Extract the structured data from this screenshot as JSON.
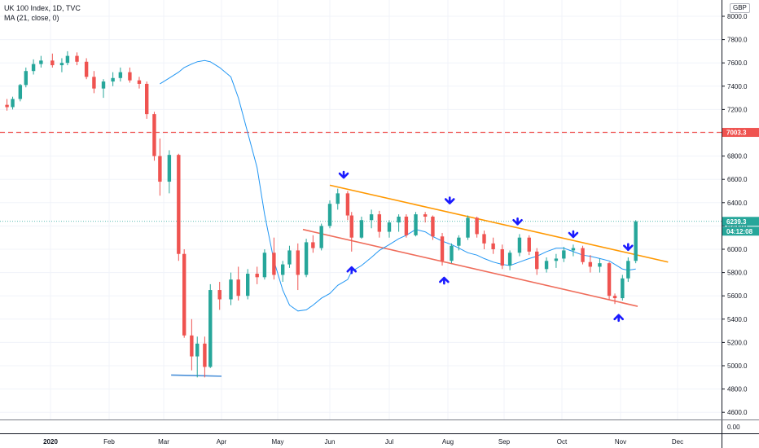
{
  "legend": {
    "symbol_line": "UK 100 Index, 1D, TVC",
    "indicator_line": "MA (21, close, 0)"
  },
  "currency": "GBP",
  "chart_data": {
    "type": "candlestick",
    "y_ticks": [
      "8000.0",
      "7800.0",
      "7600.0",
      "7400.0",
      "7200.0",
      "7000.0",
      "6800.0",
      "6600.0",
      "6400.0",
      "6200.0",
      "6000.0",
      "5800.0",
      "5600.0",
      "5400.0",
      "5200.0",
      "5000.0",
      "4800.0",
      "4600.0"
    ],
    "ylim": [
      4460,
      8100
    ],
    "x_ticks": [
      "2020",
      "Feb",
      "Mar",
      "Apr",
      "May",
      "Jun",
      "Jul",
      "Aug",
      "Sep",
      "Oct",
      "Nov",
      "Dec"
    ],
    "bold_x_tick": "2020",
    "up_color": "#26a69a",
    "down_color": "#ef5350",
    "ma_color": "#2196f3",
    "price_labels": [
      {
        "value": "7003.3",
        "color": "#ef5350",
        "style": "dashed-horizontal"
      },
      {
        "value": "6239.3",
        "color": "#26a69a",
        "style": "last-price"
      },
      {
        "value": "04:12:08",
        "color": "#26a69a",
        "style": "countdown"
      }
    ],
    "volume_axis_label": "0.00",
    "trendlines": [
      {
        "name": "upper-channel",
        "color": "#ff9800",
        "from": [
          "Jun 1",
          6550
        ],
        "to": [
          "Nov 26",
          5890
        ]
      },
      {
        "name": "lower-channel",
        "color": "#ef6c5a",
        "from": [
          "May 16",
          6170
        ],
        "to": [
          "Nov 10",
          5510
        ]
      },
      {
        "name": "support-low",
        "color": "#4a90d9",
        "from": [
          "Mar 5",
          4920
        ],
        "to": [
          "Apr 1",
          4910
        ]
      }
    ],
    "arrows": [
      {
        "dir": "down",
        "date": "Jun 8",
        "price": 6580
      },
      {
        "dir": "up",
        "date": "Jun 12",
        "price": 5880
      },
      {
        "dir": "down",
        "date": "Aug 2",
        "price": 6360
      },
      {
        "dir": "up",
        "date": "Jul 30",
        "price": 5790
      },
      {
        "dir": "down",
        "date": "Sep 8",
        "price": 6180
      },
      {
        "dir": "down",
        "date": "Oct 7",
        "price": 6070
      },
      {
        "dir": "up",
        "date": "Oct 31",
        "price": 5470
      },
      {
        "dir": "down",
        "date": "Nov 5",
        "price": 5960
      }
    ],
    "ma_values": [
      7420,
      7470,
      7520,
      7560,
      7590,
      7610,
      7620,
      7610,
      7560,
      7480,
      7300,
      7000,
      6700,
      6300,
      5900,
      5650,
      5520,
      5470,
      5480,
      5520,
      5580,
      5620,
      5690,
      5740,
      5810,
      5860,
      5930,
      5990,
      6040,
      6090,
      6120,
      6170,
      6150,
      6110,
      6070,
      6040,
      6010,
      5970,
      5950,
      5920,
      5890,
      5870,
      5860,
      5890,
      5920,
      5940,
      5980,
      6010,
      6010,
      5980,
      5950,
      5940,
      5920,
      5900,
      5870,
      5830,
      5820,
      5830
    ],
    "candles": [
      {
        "d": "Dec 9",
        "o": 7240,
        "h": 7290,
        "l": 7190,
        "c": 7220
      },
      {
        "d": "Dec 12",
        "o": 7220,
        "h": 7310,
        "l": 7200,
        "c": 7290
      },
      {
        "d": "Dec 16",
        "o": 7290,
        "h": 7420,
        "l": 7270,
        "c": 7410
      },
      {
        "d": "Dec 19",
        "o": 7410,
        "h": 7560,
        "l": 7390,
        "c": 7530
      },
      {
        "d": "Dec 23",
        "o": 7530,
        "h": 7630,
        "l": 7500,
        "c": 7590
      },
      {
        "d": "Dec 27",
        "o": 7590,
        "h": 7660,
        "l": 7560,
        "c": 7620
      },
      {
        "d": "Jan 2",
        "o": 7620,
        "h": 7680,
        "l": 7560,
        "c": 7580
      },
      {
        "d": "Jan 7",
        "o": 7580,
        "h": 7640,
        "l": 7520,
        "c": 7600
      },
      {
        "d": "Jan 10",
        "o": 7600,
        "h": 7700,
        "l": 7580,
        "c": 7660
      },
      {
        "d": "Jan 15",
        "o": 7660,
        "h": 7690,
        "l": 7580,
        "c": 7610
      },
      {
        "d": "Jan 20",
        "o": 7610,
        "h": 7640,
        "l": 7460,
        "c": 7480
      },
      {
        "d": "Jan 24",
        "o": 7480,
        "h": 7530,
        "l": 7340,
        "c": 7380
      },
      {
        "d": "Jan 29",
        "o": 7380,
        "h": 7460,
        "l": 7300,
        "c": 7440
      },
      {
        "d": "Feb 3",
        "o": 7440,
        "h": 7520,
        "l": 7400,
        "c": 7470
      },
      {
        "d": "Feb 7",
        "o": 7470,
        "h": 7560,
        "l": 7440,
        "c": 7520
      },
      {
        "d": "Feb 12",
        "o": 7520,
        "h": 7560,
        "l": 7430,
        "c": 7450
      },
      {
        "d": "Feb 17",
        "o": 7450,
        "h": 7480,
        "l": 7380,
        "c": 7420
      },
      {
        "d": "Feb 21",
        "o": 7420,
        "h": 7440,
        "l": 7120,
        "c": 7160
      },
      {
        "d": "Feb 25",
        "o": 7160,
        "h": 7180,
        "l": 6760,
        "c": 6800
      },
      {
        "d": "Feb 28",
        "o": 6800,
        "h": 6950,
        "l": 6460,
        "c": 6580
      },
      {
        "d": "Mar 4",
        "o": 6580,
        "h": 6850,
        "l": 6480,
        "c": 6810
      },
      {
        "d": "Mar 9",
        "o": 6810,
        "h": 6820,
        "l": 5900,
        "c": 5960
      },
      {
        "d": "Mar 12",
        "o": 5960,
        "h": 6000,
        "l": 5240,
        "c": 5260
      },
      {
        "d": "Mar 16",
        "o": 5260,
        "h": 5400,
        "l": 4960,
        "c": 5080
      },
      {
        "d": "Mar 19",
        "o": 5080,
        "h": 5250,
        "l": 4900,
        "c": 5190
      },
      {
        "d": "Mar 23",
        "o": 5190,
        "h": 5250,
        "l": 4900,
        "c": 4990
      },
      {
        "d": "Mar 26",
        "o": 4990,
        "h": 5700,
        "l": 4980,
        "c": 5650
      },
      {
        "d": "Mar 31",
        "o": 5650,
        "h": 5720,
        "l": 5480,
        "c": 5570
      },
      {
        "d": "Apr 6",
        "o": 5570,
        "h": 5800,
        "l": 5520,
        "c": 5740
      },
      {
        "d": "Apr 10",
        "o": 5740,
        "h": 5850,
        "l": 5560,
        "c": 5600
      },
      {
        "d": "Apr 15",
        "o": 5600,
        "h": 5830,
        "l": 5570,
        "c": 5790
      },
      {
        "d": "Apr 20",
        "o": 5790,
        "h": 5850,
        "l": 5700,
        "c": 5760
      },
      {
        "d": "Apr 24",
        "o": 5760,
        "h": 6000,
        "l": 5740,
        "c": 5970
      },
      {
        "d": "Apr 29",
        "o": 5970,
        "h": 6100,
        "l": 5740,
        "c": 5780
      },
      {
        "d": "May 4",
        "o": 5780,
        "h": 5900,
        "l": 5720,
        "c": 5870
      },
      {
        "d": "May 8",
        "o": 5870,
        "h": 6030,
        "l": 5840,
        "c": 5990
      },
      {
        "d": "May 13",
        "o": 5990,
        "h": 6050,
        "l": 5650,
        "c": 5780
      },
      {
        "d": "May 18",
        "o": 5780,
        "h": 6090,
        "l": 5760,
        "c": 6060
      },
      {
        "d": "May 22",
        "o": 6060,
        "h": 6120,
        "l": 5970,
        "c": 6010
      },
      {
        "d": "May 27",
        "o": 6010,
        "h": 6220,
        "l": 5990,
        "c": 6200
      },
      {
        "d": "Jun 1",
        "o": 6200,
        "h": 6420,
        "l": 6180,
        "c": 6390
      },
      {
        "d": "Jun 5",
        "o": 6390,
        "h": 6520,
        "l": 6340,
        "c": 6480
      },
      {
        "d": "Jun 10",
        "o": 6480,
        "h": 6500,
        "l": 6250,
        "c": 6290
      },
      {
        "d": "Jun 12",
        "o": 6290,
        "h": 6320,
        "l": 5980,
        "c": 6100
      },
      {
        "d": "Jun 17",
        "o": 6100,
        "h": 6280,
        "l": 6090,
        "c": 6250
      },
      {
        "d": "Jun 22",
        "o": 6250,
        "h": 6340,
        "l": 6180,
        "c": 6300
      },
      {
        "d": "Jun 26",
        "o": 6300,
        "h": 6330,
        "l": 6100,
        "c": 6150
      },
      {
        "d": "Jul 1",
        "o": 6150,
        "h": 6250,
        "l": 6100,
        "c": 6230
      },
      {
        "d": "Jul 6",
        "o": 6230,
        "h": 6300,
        "l": 6150,
        "c": 6280
      },
      {
        "d": "Jul 10",
        "o": 6280,
        "h": 6300,
        "l": 6100,
        "c": 6120
      },
      {
        "d": "Jul 15",
        "o": 6120,
        "h": 6320,
        "l": 6110,
        "c": 6300
      },
      {
        "d": "Jul 20",
        "o": 6300,
        "h": 6320,
        "l": 6230,
        "c": 6280
      },
      {
        "d": "Jul 24",
        "o": 6280,
        "h": 6290,
        "l": 6080,
        "c": 6110
      },
      {
        "d": "Jul 29",
        "o": 6110,
        "h": 6140,
        "l": 5860,
        "c": 5900
      },
      {
        "d": "Aug 3",
        "o": 5900,
        "h": 6050,
        "l": 5880,
        "c": 6030
      },
      {
        "d": "Aug 7",
        "o": 6030,
        "h": 6120,
        "l": 5990,
        "c": 6100
      },
      {
        "d": "Aug 12",
        "o": 6100,
        "h": 6290,
        "l": 6080,
        "c": 6270
      },
      {
        "d": "Aug 17",
        "o": 6270,
        "h": 6280,
        "l": 6100,
        "c": 6130
      },
      {
        "d": "Aug 21",
        "o": 6130,
        "h": 6160,
        "l": 6000,
        "c": 6050
      },
      {
        "d": "Aug 26",
        "o": 6050,
        "h": 6100,
        "l": 5960,
        "c": 6000
      },
      {
        "d": "Aug 31",
        "o": 6000,
        "h": 6040,
        "l": 5830,
        "c": 5860
      },
      {
        "d": "Sep 4",
        "o": 5860,
        "h": 5990,
        "l": 5820,
        "c": 5970
      },
      {
        "d": "Sep 9",
        "o": 5970,
        "h": 6130,
        "l": 5940,
        "c": 6100
      },
      {
        "d": "Sep 14",
        "o": 6100,
        "h": 6120,
        "l": 5950,
        "c": 5980
      },
      {
        "d": "Sep 18",
        "o": 5980,
        "h": 6010,
        "l": 5780,
        "c": 5830
      },
      {
        "d": "Sep 23",
        "o": 5830,
        "h": 5930,
        "l": 5800,
        "c": 5900
      },
      {
        "d": "Sep 28",
        "o": 5900,
        "h": 5960,
        "l": 5840,
        "c": 5920
      },
      {
        "d": "Oct 2",
        "o": 5920,
        "h": 6020,
        "l": 5890,
        "c": 5990
      },
      {
        "d": "Oct 7",
        "o": 5990,
        "h": 6040,
        "l": 5940,
        "c": 6010
      },
      {
        "d": "Oct 12",
        "o": 6010,
        "h": 6030,
        "l": 5870,
        "c": 5890
      },
      {
        "d": "Oct 16",
        "o": 5890,
        "h": 5950,
        "l": 5800,
        "c": 5850
      },
      {
        "d": "Oct 21",
        "o": 5850,
        "h": 5920,
        "l": 5800,
        "c": 5880
      },
      {
        "d": "Oct 26",
        "o": 5880,
        "h": 5890,
        "l": 5570,
        "c": 5600
      },
      {
        "d": "Oct 29",
        "o": 5600,
        "h": 5620,
        "l": 5530,
        "c": 5580
      },
      {
        "d": "Nov 2",
        "o": 5580,
        "h": 5780,
        "l": 5560,
        "c": 5750
      },
      {
        "d": "Nov 5",
        "o": 5750,
        "h": 5930,
        "l": 5720,
        "c": 5900
      },
      {
        "d": "Nov 9",
        "o": 5900,
        "h": 6250,
        "l": 5880,
        "c": 6239.3
      }
    ]
  }
}
